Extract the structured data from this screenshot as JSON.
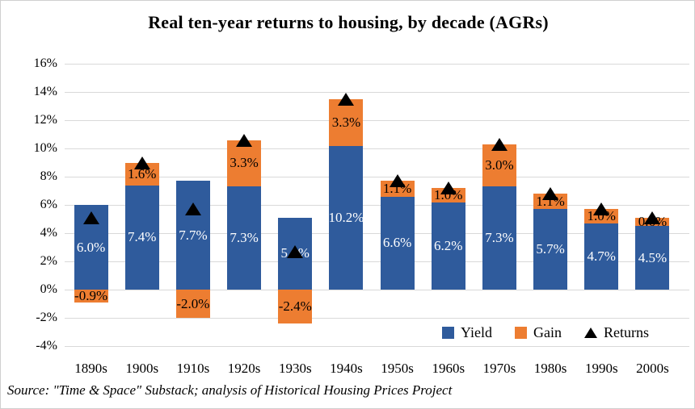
{
  "title": "Real ten-year returns to housing, by decade (AGRs)",
  "source": "Source: \"Time & Space\" Substack; analysis of Historical Housing Prices Project",
  "colors": {
    "yield_blue": "#2F5B9C",
    "gain_orange": "#ED7D31",
    "returns_black": "#000000",
    "gridline_gray": "#D9D9D9",
    "yield_label_text": "#FFFFFF",
    "gain_label_text": "#000000"
  },
  "legend": {
    "items": [
      {
        "label": "Yield",
        "marker": "square",
        "color": "#2F5B9C"
      },
      {
        "label": "Gain",
        "marker": "square",
        "color": "#ED7D31"
      },
      {
        "label": "Returns",
        "marker": "triangle",
        "color": "#000000"
      }
    ]
  },
  "chart_data": {
    "type": "bar",
    "stacked": true,
    "title": "Real ten-year returns to housing, by decade (AGRs)",
    "categories": [
      "1890s",
      "1900s",
      "1910s",
      "1920s",
      "1930s",
      "1940s",
      "1950s",
      "1960s",
      "1970s",
      "1980s",
      "1990s",
      "2000s"
    ],
    "series": [
      {
        "name": "Yield",
        "type": "bar",
        "color": "#2F5B9C",
        "values": [
          6.0,
          7.4,
          7.7,
          7.3,
          5.1,
          10.2,
          6.6,
          6.2,
          7.3,
          5.7,
          4.7,
          4.5
        ],
        "labels": [
          "6.0%",
          "7.4%",
          "7.7%",
          "7.3%",
          "5.1%",
          "10.2%",
          "6.6%",
          "6.2%",
          "7.3%",
          "5.7%",
          "4.7%",
          "4.5%"
        ]
      },
      {
        "name": "Gain",
        "type": "bar",
        "color": "#ED7D31",
        "values": [
          -0.9,
          1.6,
          -2.0,
          3.3,
          -2.4,
          3.3,
          1.1,
          1.0,
          3.0,
          1.1,
          1.0,
          0.6
        ],
        "labels": [
          "-0.9%",
          "1.6%",
          "-2.0%",
          "3.3%",
          "-2.4%",
          "3.3%",
          "1.1%",
          "1.0%",
          "3.0%",
          "1.1%",
          "1.0%",
          "0.6%"
        ]
      },
      {
        "name": "Returns",
        "type": "scatter",
        "marker": "triangle",
        "color": "#000000",
        "values": [
          5.1,
          9.0,
          5.7,
          10.6,
          2.7,
          13.5,
          7.7,
          7.2,
          10.3,
          6.8,
          5.7,
          5.1
        ]
      }
    ],
    "xlabel": "",
    "ylabel": "",
    "ylim": [
      -4,
      16
    ],
    "ytick_step": 2,
    "ytick_labels": [
      "-4%",
      "-2%",
      "0%",
      "2%",
      "4%",
      "6%",
      "8%",
      "10%",
      "12%",
      "14%",
      "16%"
    ],
    "grid": true,
    "legend_position": "inside-bottom-right"
  }
}
